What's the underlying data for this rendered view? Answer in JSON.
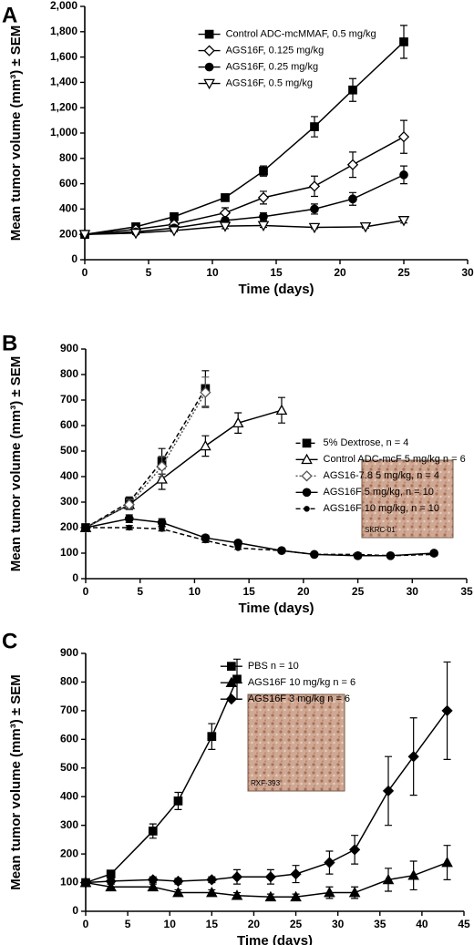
{
  "chart_data": [
    {
      "type": "line",
      "panel_label": "A",
      "ylabel": "Mean tumor volume (mm³) ± SEM",
      "xlabel": "Time (days)",
      "xlim": [
        0,
        30
      ],
      "xticks": [
        0,
        5,
        10,
        15,
        20,
        25,
        30
      ],
      "ylim": [
        0,
        2000
      ],
      "yticks": [
        0,
        200,
        400,
        600,
        800,
        {
          "value": 1000,
          "label": "1,000"
        },
        {
          "value": 1200,
          "label": "1,200"
        },
        {
          "value": 1400,
          "label": "1,400"
        },
        {
          "value": 1600,
          "label": "1,600"
        },
        {
          "value": 1800,
          "label": "1,800"
        },
        {
          "value": 2000,
          "label": "2,000"
        }
      ],
      "legend": "upper left",
      "series": [
        {
          "name": "Control ADC-mcMMAF, 0.5 mg/kg",
          "color": "#000000",
          "marker": "square",
          "filled": true,
          "x": [
            0,
            4,
            7,
            11,
            14,
            18,
            21,
            25
          ],
          "values": [
            200,
            260,
            340,
            490,
            700,
            1050,
            1340,
            1720
          ],
          "errors": [
            20,
            20,
            20,
            20,
            40,
            80,
            90,
            130
          ]
        },
        {
          "name": "AGS16F, 0.125 mg/kg",
          "color": "#000000",
          "marker": "diamond",
          "filled": false,
          "x": [
            0,
            4,
            7,
            11,
            14,
            18,
            21,
            25
          ],
          "values": [
            200,
            240,
            280,
            370,
            490,
            580,
            750,
            970
          ],
          "errors": [
            20,
            20,
            20,
            40,
            50,
            80,
            100,
            130
          ]
        },
        {
          "name": "AGS16F, 0.25 mg/kg",
          "color": "#000000",
          "marker": "circle",
          "filled": true,
          "x": [
            0,
            4,
            7,
            11,
            14,
            18,
            21,
            25
          ],
          "values": [
            200,
            220,
            250,
            310,
            340,
            400,
            480,
            670
          ],
          "errors": [
            20,
            20,
            20,
            20,
            30,
            40,
            50,
            70
          ]
        },
        {
          "name": "AGS16F, 0.5 mg/kg",
          "color": "#000000",
          "marker": "triangle-down",
          "filled": false,
          "x": [
            0,
            4,
            7,
            11,
            14,
            18,
            22,
            25
          ],
          "values": [
            200,
            210,
            230,
            265,
            270,
            255,
            260,
            310
          ],
          "errors": [
            10,
            10,
            10,
            20,
            15,
            10,
            10,
            20
          ]
        }
      ]
    },
    {
      "type": "line",
      "panel_label": "B",
      "ylabel": "Mean tumor volume (mm³) ± SEM",
      "xlabel": "Time (days)",
      "xlim": [
        0,
        35
      ],
      "xticks": [
        0,
        5,
        10,
        15,
        20,
        25,
        30,
        35
      ],
      "ylim": [
        0,
        900
      ],
      "yticks": [
        0,
        100,
        200,
        300,
        400,
        500,
        600,
        700,
        800,
        900
      ],
      "legend": "center right",
      "inset_label": "SKRC-01",
      "series": [
        {
          "name": "5% Dextrose, n = 4",
          "color": "#000000",
          "marker": "square",
          "filled": true,
          "dash": "dashed",
          "x": [
            0,
            4,
            7,
            11
          ],
          "values": [
            200,
            300,
            460,
            745
          ],
          "errors": [
            10,
            20,
            50,
            70
          ]
        },
        {
          "name": "Control ADC-mcF 5 mg/kg n = 6",
          "color": "#000000",
          "marker": "triangle-up",
          "filled": false,
          "x": [
            0,
            4,
            7,
            11,
            14,
            18
          ],
          "values": [
            200,
            290,
            390,
            520,
            610,
            660
          ],
          "errors": [
            10,
            20,
            40,
            40,
            40,
            50
          ]
        },
        {
          "name": "AGS16-7.8 5 mg/kg, n = 4",
          "color": "#555555",
          "marker": "diamond",
          "filled": false,
          "dash": "dotted",
          "x": [
            0,
            4,
            7,
            11
          ],
          "values": [
            200,
            290,
            440,
            730
          ],
          "errors": [
            10,
            20,
            40,
            60
          ]
        },
        {
          "name": "AGS16F 5 mg/kg, n = 10",
          "color": "#000000",
          "marker": "circle",
          "filled": true,
          "x": [
            0,
            4,
            7,
            11,
            14,
            18,
            21,
            25,
            28,
            32
          ],
          "values": [
            200,
            235,
            220,
            160,
            140,
            110,
            95,
            90,
            90,
            100
          ],
          "errors": [
            10,
            15,
            15,
            10,
            8,
            8,
            5,
            10,
            5,
            8
          ]
        },
        {
          "name": "AGS16F 10 mg/kg, n = 10",
          "color": "#000000",
          "marker": "dot",
          "filled": true,
          "dash": "dashed",
          "x": [
            0,
            4,
            7,
            11,
            14,
            18,
            21,
            25,
            28,
            32
          ],
          "values": [
            200,
            200,
            195,
            150,
            120,
            110,
            95,
            95,
            90,
            95
          ],
          "errors": [
            5,
            8,
            8,
            8,
            5,
            5,
            5,
            5,
            5,
            5
          ]
        }
      ]
    },
    {
      "type": "line",
      "panel_label": "C",
      "ylabel": "Mean tumor volume (mm³) ± SEM",
      "xlabel": "Time (days)",
      "xlim": [
        0,
        45
      ],
      "xticks": [
        0,
        5,
        10,
        15,
        20,
        25,
        30,
        35,
        40,
        45
      ],
      "ylim": [
        0,
        900
      ],
      "yticks": [
        0,
        100,
        200,
        300,
        400,
        500,
        600,
        700,
        800,
        900
      ],
      "legend": "upper center",
      "inset_label": "RXF-393",
      "series": [
        {
          "name": "PBS n = 10",
          "color": "#000000",
          "marker": "square",
          "filled": true,
          "x": [
            0,
            3,
            8,
            11,
            15,
            18
          ],
          "values": [
            100,
            130,
            280,
            385,
            610,
            810
          ],
          "errors": [
            10,
            10,
            25,
            30,
            45,
            70
          ]
        },
        {
          "name": "AGS16F 10 mg/kg n = 6",
          "color": "#000000",
          "marker": "triangle-up",
          "filled": true,
          "x": [
            0,
            3,
            8,
            11,
            15,
            18,
            22,
            25,
            29,
            32,
            36,
            39,
            43
          ],
          "values": [
            100,
            85,
            85,
            65,
            65,
            55,
            50,
            50,
            65,
            65,
            110,
            125,
            170
          ],
          "errors": [
            10,
            10,
            10,
            10,
            10,
            10,
            10,
            10,
            20,
            20,
            40,
            50,
            60
          ]
        },
        {
          "name": "AGS16F 3 mg/kg n = 6",
          "color": "#000000",
          "marker": "diamond",
          "filled": true,
          "x": [
            0,
            3,
            8,
            11,
            15,
            18,
            22,
            25,
            29,
            32,
            36,
            39,
            43
          ],
          "values": [
            100,
            105,
            110,
            105,
            110,
            120,
            120,
            130,
            170,
            215,
            420,
            540,
            700
          ],
          "errors": [
            10,
            10,
            10,
            10,
            10,
            25,
            25,
            30,
            40,
            50,
            120,
            135,
            170
          ]
        }
      ]
    }
  ]
}
